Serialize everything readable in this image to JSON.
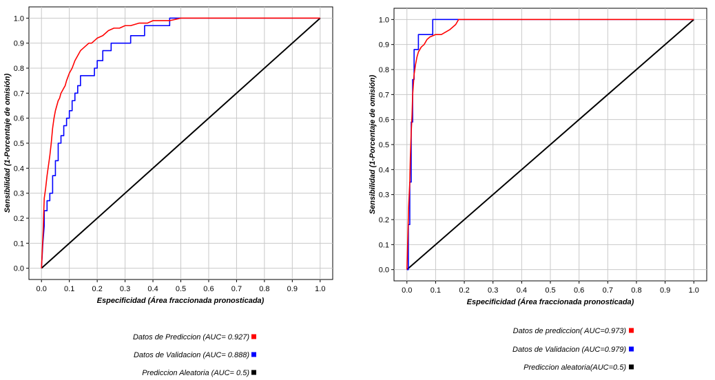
{
  "chart_data": [
    {
      "type": "line",
      "xlabel": "Especificidad (Área fraccionada pronosticada)",
      "ylabel": "Sensibilidad (1-Porcentaje de omisión)",
      "xlim": [
        0,
        1
      ],
      "ylim": [
        0,
        1
      ],
      "xticks": [
        "0.0",
        "0.1",
        "0.2",
        "0.3",
        "0.4",
        "0.5",
        "0.6",
        "0.7",
        "0.8",
        "0.9",
        "1.0"
      ],
      "yticks": [
        "0.0",
        "0.1",
        "0.2",
        "0.3",
        "0.4",
        "0.5",
        "0.6",
        "0.7",
        "0.8",
        "0.9",
        "1.0"
      ],
      "grid": true,
      "legend_position": "bottom",
      "series": [
        {
          "name": "Datos de Prediccion (AUC= 0.927)",
          "color": "#ff0000",
          "x": [
            0,
            0.002,
            0.004,
            0.006,
            0.008,
            0.01,
            0.015,
            0.02,
            0.025,
            0.03,
            0.035,
            0.04,
            0.045,
            0.05,
            0.055,
            0.06,
            0.065,
            0.07,
            0.075,
            0.08,
            0.085,
            0.09,
            0.1,
            0.11,
            0.12,
            0.13,
            0.14,
            0.15,
            0.16,
            0.17,
            0.18,
            0.19,
            0.2,
            0.22,
            0.24,
            0.26,
            0.28,
            0.3,
            0.32,
            0.35,
            0.38,
            0.4,
            0.43,
            0.46,
            0.5,
            0.55,
            1.0
          ],
          "y": [
            0,
            0.05,
            0.1,
            0.15,
            0.22,
            0.28,
            0.32,
            0.37,
            0.41,
            0.45,
            0.5,
            0.56,
            0.6,
            0.63,
            0.65,
            0.67,
            0.68,
            0.7,
            0.71,
            0.72,
            0.73,
            0.75,
            0.78,
            0.8,
            0.83,
            0.85,
            0.87,
            0.88,
            0.89,
            0.9,
            0.9,
            0.91,
            0.92,
            0.93,
            0.95,
            0.96,
            0.96,
            0.97,
            0.97,
            0.98,
            0.98,
            0.99,
            0.99,
            0.99,
            1.0,
            1.0,
            1.0
          ]
        },
        {
          "name": "Datos de Validacion (AUC= 0.888)",
          "color": "#0000ff",
          "x": [
            0,
            0.005,
            0.01,
            0.01,
            0.02,
            0.02,
            0.03,
            0.03,
            0.04,
            0.04,
            0.05,
            0.05,
            0.06,
            0.06,
            0.07,
            0.07,
            0.08,
            0.08,
            0.09,
            0.09,
            0.1,
            0.1,
            0.11,
            0.11,
            0.12,
            0.12,
            0.13,
            0.13,
            0.14,
            0.14,
            0.19,
            0.19,
            0.2,
            0.2,
            0.22,
            0.22,
            0.25,
            0.25,
            0.32,
            0.32,
            0.37,
            0.37,
            0.46,
            0.46,
            0.5,
            1.0
          ],
          "y": [
            0,
            0.1,
            0.17,
            0.23,
            0.23,
            0.27,
            0.27,
            0.3,
            0.3,
            0.37,
            0.37,
            0.43,
            0.43,
            0.5,
            0.5,
            0.53,
            0.53,
            0.57,
            0.57,
            0.6,
            0.6,
            0.63,
            0.63,
            0.67,
            0.67,
            0.7,
            0.7,
            0.73,
            0.73,
            0.77,
            0.77,
            0.8,
            0.8,
            0.83,
            0.83,
            0.87,
            0.87,
            0.9,
            0.9,
            0.93,
            0.93,
            0.97,
            0.97,
            1.0,
            1.0,
            1.0
          ]
        },
        {
          "name": "Prediccion Aleatoria (AUC= 0.5)",
          "color": "#000000",
          "x": [
            0,
            1
          ],
          "y": [
            0,
            1
          ]
        }
      ]
    },
    {
      "type": "line",
      "xlabel": "Especificidad (Área fraccionada pronosticada)",
      "ylabel": "Sensibilidad (1-Porcentaje de omisión)",
      "xlim": [
        0,
        1
      ],
      "ylim": [
        0,
        1
      ],
      "xticks": [
        "0.0",
        "0.1",
        "0.2",
        "0.3",
        "0.4",
        "0.5",
        "0.6",
        "0.7",
        "0.8",
        "0.9",
        "1.0"
      ],
      "yticks": [
        "0.0",
        "0.1",
        "0.2",
        "0.3",
        "0.4",
        "0.5",
        "0.6",
        "0.7",
        "0.8",
        "0.9",
        "1.0"
      ],
      "grid": true,
      "legend_position": "bottom",
      "series": [
        {
          "name": "Datos de prediccion( AUC=0.973)",
          "color": "#ff0000",
          "x": [
            0,
            0.003,
            0.006,
            0.01,
            0.012,
            0.015,
            0.018,
            0.02,
            0.025,
            0.03,
            0.035,
            0.04,
            0.05,
            0.06,
            0.07,
            0.08,
            0.1,
            0.12,
            0.15,
            0.16,
            0.17,
            0.18,
            1.0
          ],
          "y": [
            0,
            0.12,
            0.25,
            0.35,
            0.45,
            0.55,
            0.62,
            0.7,
            0.78,
            0.82,
            0.85,
            0.87,
            0.89,
            0.9,
            0.92,
            0.93,
            0.94,
            0.94,
            0.96,
            0.97,
            0.98,
            1.0,
            1.0
          ]
        },
        {
          "name": "Datos de Validacion (AUC=0.979)",
          "color": "#0000ff",
          "x": [
            0,
            0.005,
            0.005,
            0.01,
            0.01,
            0.015,
            0.015,
            0.02,
            0.02,
            0.025,
            0.025,
            0.03,
            0.03,
            0.04,
            0.04,
            0.09,
            0.09,
            1.0
          ],
          "y": [
            0,
            0,
            0.18,
            0.18,
            0.35,
            0.35,
            0.59,
            0.59,
            0.76,
            0.76,
            0.88,
            0.88,
            0.88,
            0.88,
            0.94,
            0.94,
            1.0,
            1.0
          ]
        },
        {
          "name": "Prediccion aleatoria(AUC=0.5)",
          "color": "#000000",
          "x": [
            0,
            1
          ],
          "y": [
            0,
            1
          ]
        }
      ]
    }
  ]
}
